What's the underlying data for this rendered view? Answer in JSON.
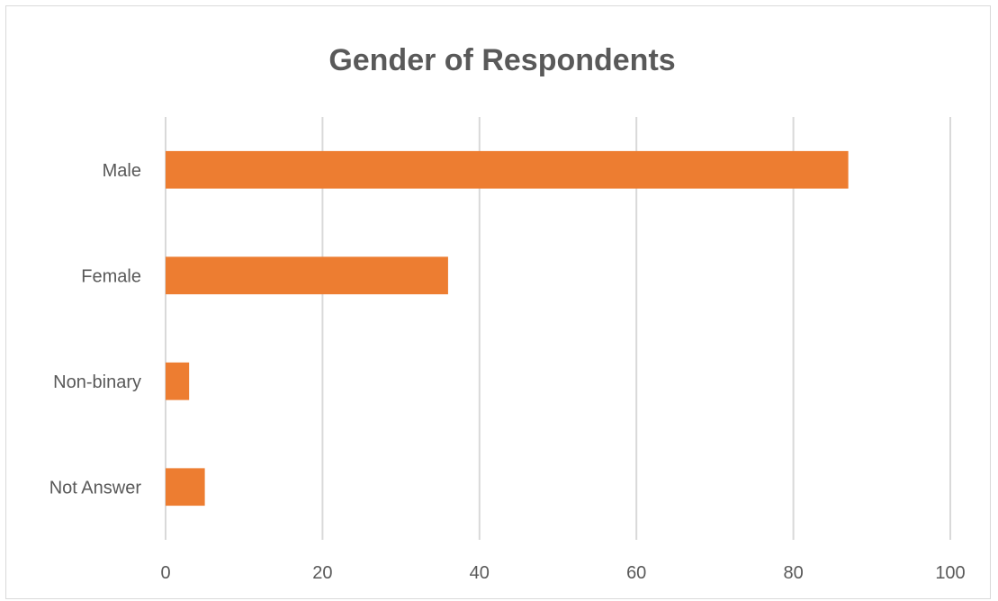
{
  "chart_data": {
    "type": "bar",
    "orientation": "horizontal",
    "title": "Gender of Respondents",
    "categories": [
      "Male",
      "Female ",
      "Non-binary",
      "Not Answer"
    ],
    "values": [
      87,
      36,
      3,
      5
    ],
    "xlim": [
      0,
      100
    ],
    "xticks": [
      0,
      20,
      40,
      60,
      80,
      100
    ],
    "xlabel": "",
    "ylabel": "",
    "grid": true,
    "legend": "none",
    "colors": {
      "bar": "#ED7D31",
      "grid": "#D9D9D9",
      "text": "#595959"
    }
  }
}
